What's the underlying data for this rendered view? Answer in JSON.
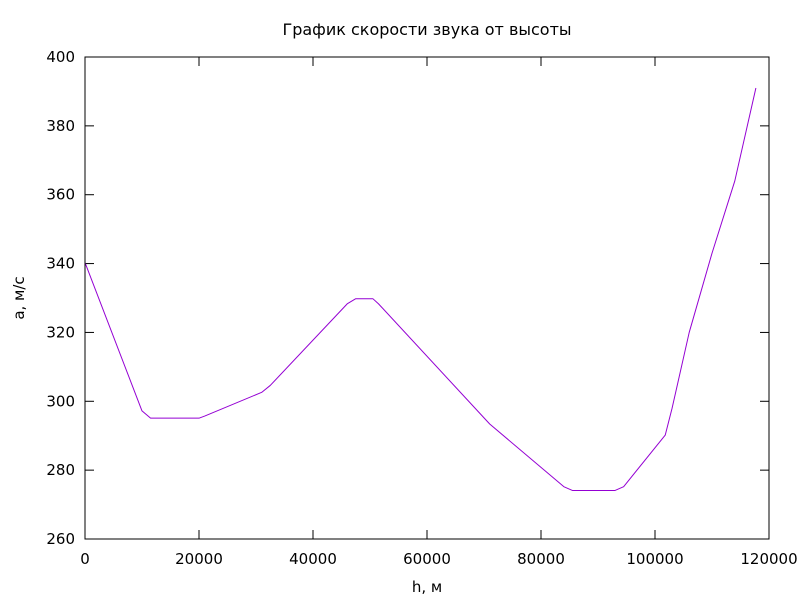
{
  "chart_data": {
    "type": "line",
    "title": "График скорости звука от высоты",
    "xlabel": "h, м",
    "ylabel": "a, м/с",
    "xlim": [
      0,
      120000
    ],
    "ylim": [
      260,
      400
    ],
    "xticks": [
      0,
      20000,
      40000,
      60000,
      80000,
      100000,
      120000
    ],
    "yticks": [
      260,
      280,
      300,
      320,
      340,
      360,
      380,
      400
    ],
    "xtick_labels": [
      "0",
      "20000",
      "40000",
      "60000",
      "80000",
      "100000",
      "120000"
    ],
    "ytick_labels": [
      "260",
      "280",
      "300",
      "320",
      "340",
      "360",
      "380",
      "400"
    ],
    "grid": false,
    "series": [
      {
        "color": "#9400d3",
        "x": [
          0,
          10000,
          11500,
          20000,
          21000,
          31000,
          32500,
          46000,
          47500,
          50500,
          51500,
          71000,
          84000,
          85500,
          93000,
          94500,
          101800,
          103000,
          106000,
          110000,
          114000,
          117700
        ],
        "y": [
          340.3,
          297.2,
          295.1,
          295.1,
          295.7,
          302.6,
          304.6,
          328.3,
          329.8,
          329.8,
          328.3,
          293.4,
          275.2,
          274.1,
          274.1,
          275.2,
          290.2,
          298.0,
          320.0,
          343.0,
          364.0,
          391.0
        ]
      }
    ]
  }
}
